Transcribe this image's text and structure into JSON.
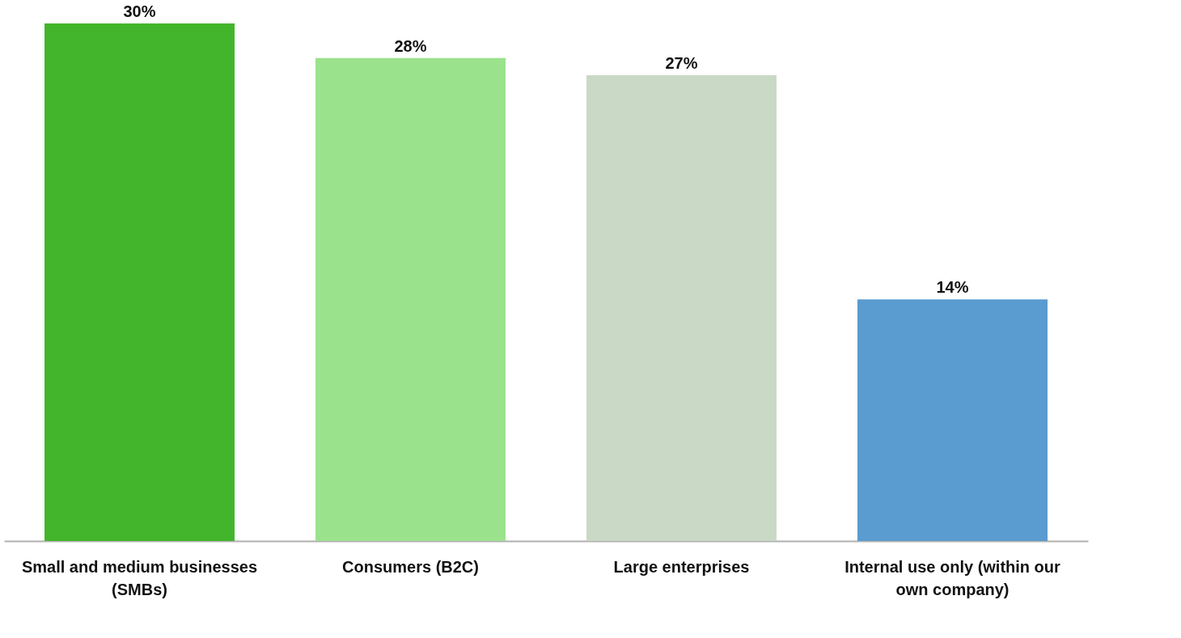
{
  "chart_data": {
    "type": "bar",
    "categories": [
      "Small and medium businesses (SMBs)",
      "Consumers (B2C)",
      "Large enterprises",
      "Internal use only (within our own company)"
    ],
    "values": [
      30,
      28,
      27,
      14
    ],
    "value_labels": [
      "30%",
      "28%",
      "27%",
      "14%"
    ],
    "colors": [
      "#43b52c",
      "#9be28d",
      "#c9d9c6",
      "#5a9bd0"
    ],
    "grid": false,
    "tick_labels": "x"
  }
}
